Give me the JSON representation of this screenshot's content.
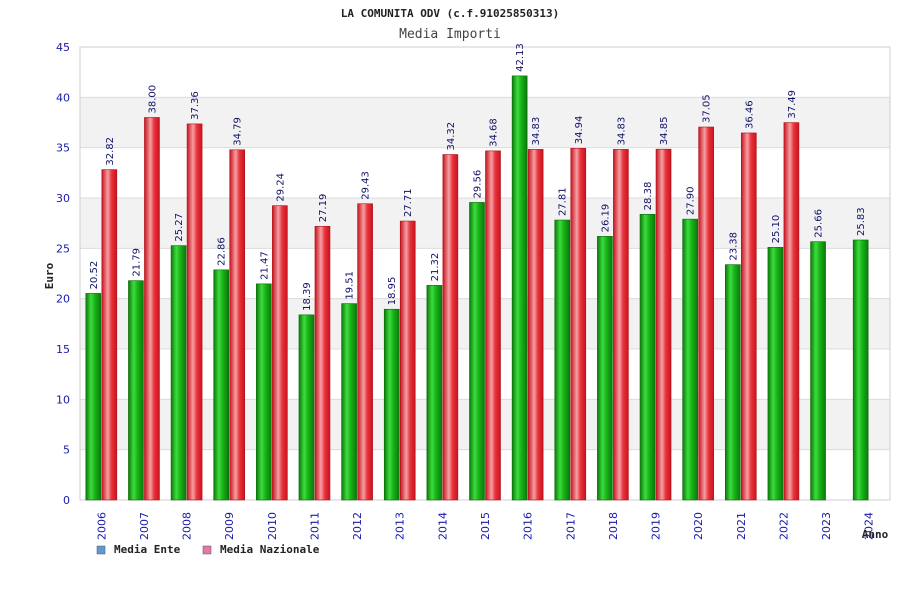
{
  "chart_data": {
    "type": "bar",
    "title": "LA COMUNITA ODV (c.f.91025850313)",
    "subtitle": "Media Importi",
    "ylabel": "Euro",
    "xlabel": "Anno",
    "ylim": [
      0,
      45
    ],
    "yticks": [
      0,
      5,
      10,
      15,
      20,
      25,
      30,
      35,
      40,
      45
    ],
    "grid": "horizontal-bands",
    "legend_position": "bottom-left",
    "categories": [
      "2006",
      "2007",
      "2008",
      "2009",
      "2010",
      "2011",
      "2012",
      "2013",
      "2014",
      "2015",
      "2016",
      "2017",
      "2018",
      "2019",
      "2020",
      "2021",
      "2022",
      "2023",
      "2024"
    ],
    "series": [
      {
        "name": "Media Ente",
        "legend_color": "#5b9bd5",
        "bar_color": "#19b319",
        "values": [
          20.52,
          21.79,
          25.27,
          22.86,
          21.47,
          18.39,
          19.51,
          18.95,
          21.32,
          29.56,
          42.13,
          27.81,
          26.19,
          28.38,
          27.9,
          23.38,
          25.1,
          25.66,
          25.83
        ],
        "labels": [
          "20.52",
          "21.79",
          "25.27",
          "22.86",
          "21.47",
          "18.39",
          "19.51",
          "18.95",
          "21.32",
          "29.56",
          "42.13",
          "27.81",
          "26.19",
          "28.38",
          "27.90",
          "23.38",
          "25.10",
          "25.66",
          "25.83"
        ]
      },
      {
        "name": "Media Nazionale",
        "legend_color": "#e377a8",
        "bar_color": "#e8323c",
        "values": [
          32.82,
          38.0,
          37.36,
          34.79,
          29.24,
          27.19,
          29.43,
          27.71,
          34.32,
          34.68,
          34.83,
          34.94,
          34.83,
          34.85,
          37.05,
          36.46,
          37.49,
          null,
          null
        ],
        "labels": [
          "32.82",
          "38.00",
          "37.36",
          "34.79",
          "29.24",
          "27.19",
          "29.43",
          "27.71",
          "34.32",
          "34.68",
          "34.83",
          "34.94",
          "34.83",
          "34.85",
          "37.05",
          "36.46",
          "37.49",
          null,
          null
        ]
      }
    ]
  }
}
